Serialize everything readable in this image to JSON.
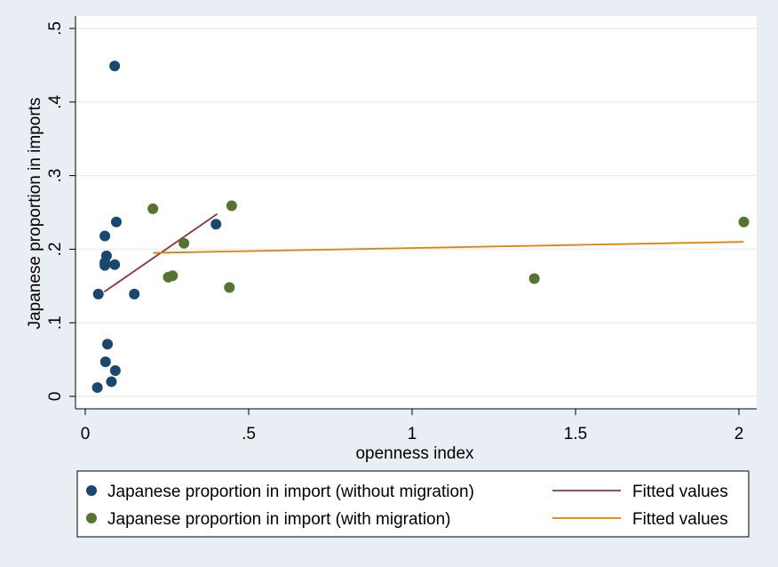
{
  "chart_data": {
    "type": "scatter",
    "title": "",
    "xlabel": "openness index",
    "ylabel": "Japanese proportion in imports",
    "xlim": [
      0,
      2
    ],
    "ylim": [
      0,
      0.5
    ],
    "x_ticks": [
      0,
      0.5,
      1,
      1.5,
      2
    ],
    "x_tick_labels": [
      "0",
      ".5",
      "1",
      "1.5",
      "2"
    ],
    "y_ticks": [
      0,
      0.1,
      0.2,
      0.3,
      0.4,
      0.5
    ],
    "y_tick_labels": [
      "0",
      ".1",
      ".2",
      ".3",
      ".4",
      ".5"
    ],
    "grid": true,
    "legend_position": "bottom",
    "series": [
      {
        "name": "Japanese proportion in import (without migration)",
        "kind": "scatter",
        "color": "#1a476f",
        "points": [
          {
            "x": 0.09,
            "y": 0.449
          },
          {
            "x": 0.095,
            "y": 0.237
          },
          {
            "x": 0.06,
            "y": 0.218
          },
          {
            "x": 0.065,
            "y": 0.191
          },
          {
            "x": 0.06,
            "y": 0.182
          },
          {
            "x": 0.06,
            "y": 0.178
          },
          {
            "x": 0.09,
            "y": 0.179
          },
          {
            "x": 0.04,
            "y": 0.139
          },
          {
            "x": 0.15,
            "y": 0.139
          },
          {
            "x": 0.4,
            "y": 0.234
          },
          {
            "x": 0.068,
            "y": 0.071
          },
          {
            "x": 0.062,
            "y": 0.047
          },
          {
            "x": 0.092,
            "y": 0.035
          },
          {
            "x": 0.08,
            "y": 0.02
          },
          {
            "x": 0.037,
            "y": 0.012
          }
        ]
      },
      {
        "name": "Japanese proportion in import (with migration)",
        "kind": "scatter",
        "color": "#55752f",
        "points": [
          {
            "x": 0.207,
            "y": 0.255
          },
          {
            "x": 0.448,
            "y": 0.259
          },
          {
            "x": 0.302,
            "y": 0.208
          },
          {
            "x": 0.254,
            "y": 0.162
          },
          {
            "x": 0.267,
            "y": 0.164
          },
          {
            "x": 0.441,
            "y": 0.148
          },
          {
            "x": 1.374,
            "y": 0.16
          },
          {
            "x": 2.015,
            "y": 0.237
          }
        ]
      },
      {
        "name": "Fitted values",
        "kind": "line",
        "color": "#90353b",
        "points": [
          {
            "x": 0.058,
            "y": 0.142
          },
          {
            "x": 0.404,
            "y": 0.248
          }
        ]
      },
      {
        "name": "Fitted values",
        "kind": "line",
        "color": "#e37e00",
        "points": [
          {
            "x": 0.208,
            "y": 0.195
          },
          {
            "x": 2.015,
            "y": 0.21
          }
        ]
      }
    ]
  },
  "colors": {
    "background": "#e8eef3",
    "plot_background": "#ffffff",
    "grid": "#e8eef3"
  }
}
